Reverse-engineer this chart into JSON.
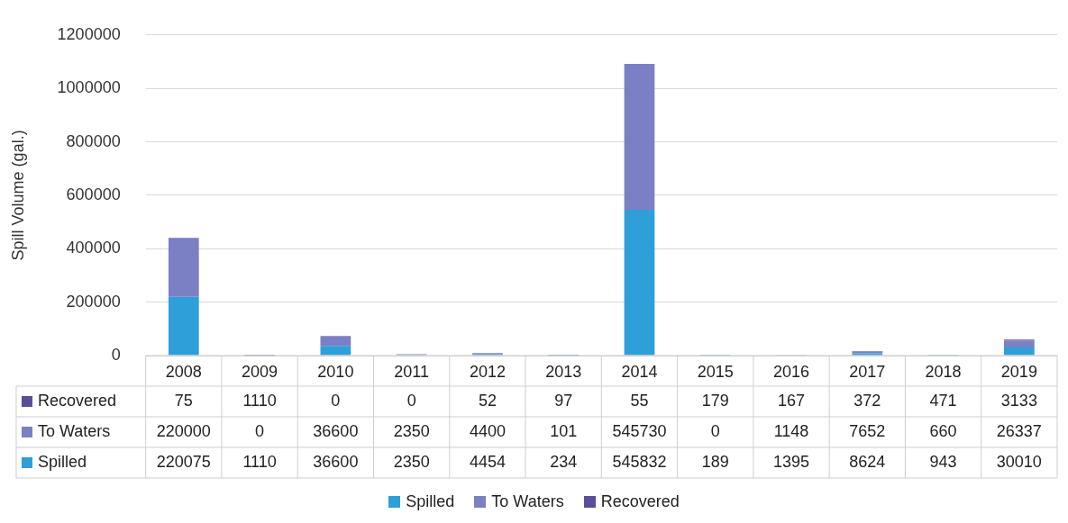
{
  "chart_data": {
    "type": "bar",
    "stacked": true,
    "ylabel": "Spill Volume (gal.)",
    "categories": [
      "2008",
      "2009",
      "2010",
      "2011",
      "2012",
      "2013",
      "2014",
      "2015",
      "2016",
      "2017",
      "2018",
      "2019"
    ],
    "series": [
      {
        "name": "Spilled",
        "color": "#2e9fd8",
        "values": [
          220075,
          1110,
          36600,
          2350,
          4454,
          234,
          545832,
          189,
          1395,
          8624,
          943,
          30010
        ]
      },
      {
        "name": "To Waters",
        "color": "#7b7fc4",
        "values": [
          220000,
          0,
          36600,
          2350,
          4400,
          101,
          545730,
          0,
          1148,
          7652,
          660,
          26337
        ]
      },
      {
        "name": "Recovered",
        "color": "#5b4e9a",
        "values": [
          75,
          1110,
          0,
          0,
          52,
          97,
          55,
          179,
          167,
          372,
          471,
          3133
        ]
      }
    ],
    "ylim": [
      0,
      1200000
    ],
    "yticks": [
      0,
      200000,
      400000,
      600000,
      800000,
      1000000,
      1200000
    ],
    "grid": "y",
    "legend": "bottom",
    "data_labels": true
  }
}
